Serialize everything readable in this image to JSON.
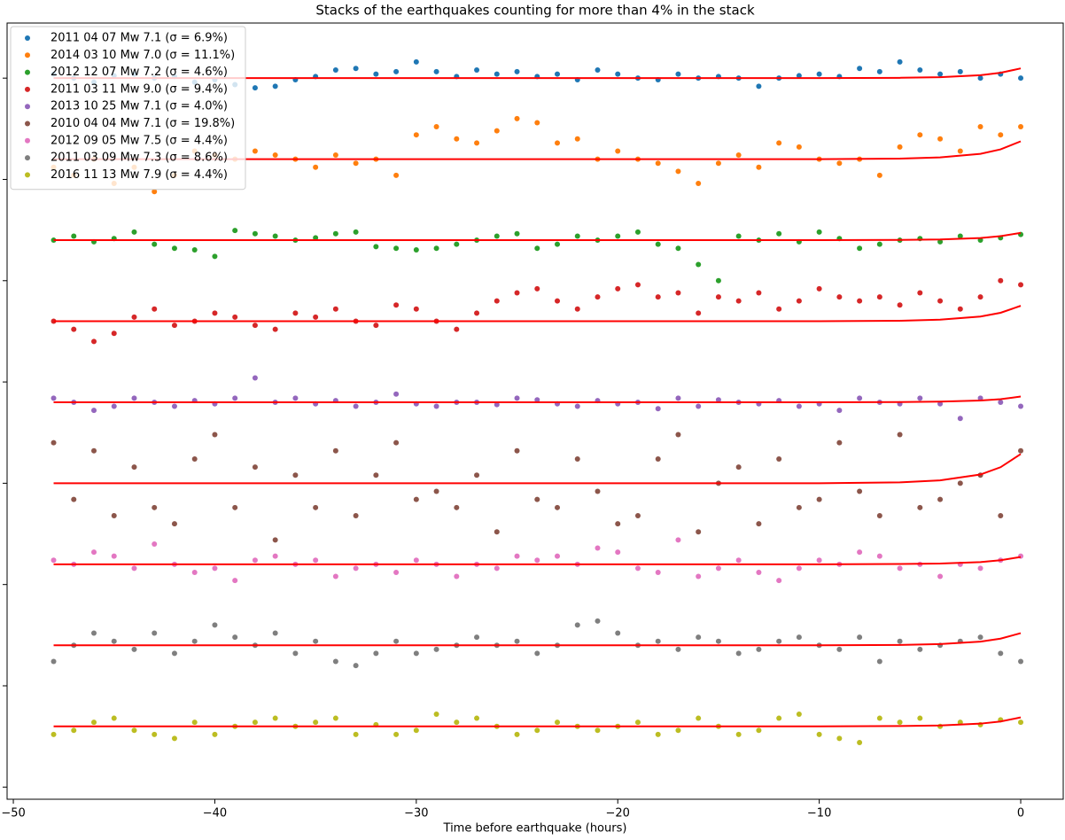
{
  "chart_data": {
    "type": "scatter",
    "title": "Stacks of the earthquakes counting for more than 4% in the stack",
    "x_label": "Time before earthquake (hours)",
    "xlim": [
      -50.31,
      2.11
    ],
    "ylim": [
      -8.9,
      0.68
    ],
    "xticks": [
      {
        "value": -50,
        "label": "−50"
      },
      {
        "value": -40,
        "label": "−40"
      },
      {
        "value": -30,
        "label": "−30"
      },
      {
        "value": -20,
        "label": "−20"
      },
      {
        "value": -10,
        "label": "−10"
      },
      0
    ],
    "yticks": [
      0,
      -1.25,
      -2.5,
      -3.75,
      -5,
      -6.25,
      -7.5,
      -8.75
    ],
    "legend": "upper left",
    "x": [
      -48,
      -47,
      -46,
      -45,
      -44,
      -43,
      -42,
      -41,
      -40,
      -39,
      -38,
      -37,
      -36,
      -35,
      -34,
      -33,
      -32,
      -31,
      -30,
      -29,
      -28,
      -27,
      -26,
      -25,
      -24,
      -23,
      -22,
      -21,
      -20,
      -19,
      -18,
      -17,
      -16,
      -15,
      -14,
      -13,
      -12,
      -11,
      -10,
      -9,
      -8,
      -7,
      -6,
      -5,
      -4,
      -3,
      -2,
      -1,
      0
    ],
    "series": [
      {
        "name": "2011 04 07 Mw 7.1 (σ = 6.9%)",
        "color": "#1f77b4",
        "values": [
          0.05,
          0.0,
          -0.05,
          0.03,
          0.05,
          0.0,
          0.02,
          -0.05,
          -0.02,
          -0.08,
          -0.12,
          -0.1,
          -0.02,
          0.02,
          0.1,
          0.12,
          0.05,
          0.08,
          0.2,
          0.08,
          0.02,
          0.1,
          0.05,
          0.08,
          0.02,
          0.05,
          -0.02,
          0.1,
          0.05,
          0.0,
          -0.02,
          0.05,
          0.0,
          0.02,
          0.0,
          -0.1,
          0.0,
          0.03,
          0.05,
          0.02,
          0.12,
          0.08,
          0.2,
          0.1,
          0.05,
          0.08,
          0.0,
          0.05,
          0.0
        ]
      },
      {
        "name": "2014 03 10 Mw 7.0 (σ = 11.1%)",
        "color": "#ff7f0e",
        "values": [
          -1.1,
          -1.2,
          -1.0,
          -1.3,
          -1.1,
          -1.4,
          -1.2,
          -0.9,
          -0.95,
          -1.0,
          -0.9,
          -0.95,
          -1.0,
          -1.1,
          -0.95,
          -1.05,
          -1.0,
          -1.2,
          -0.7,
          -0.6,
          -0.75,
          -0.8,
          -0.65,
          -0.5,
          -0.55,
          -0.8,
          -0.75,
          -1.0,
          -0.9,
          -1.0,
          -1.05,
          -1.15,
          -1.3,
          -1.05,
          -0.95,
          -1.1,
          -0.8,
          -0.85,
          -1.0,
          -1.05,
          -1.0,
          -1.2,
          -0.85,
          -0.7,
          -0.75,
          -0.9,
          -0.6,
          -0.7,
          -0.6
        ]
      },
      {
        "name": "2012 12 07 Mw 7.2 (σ = 4.6%)",
        "color": "#2ca02c",
        "values": [
          -2.0,
          -1.95,
          -2.02,
          -1.98,
          -1.9,
          -2.05,
          -2.1,
          -2.12,
          -2.2,
          -1.88,
          -1.92,
          -1.95,
          -2.0,
          -1.97,
          -1.92,
          -1.9,
          -2.08,
          -2.1,
          -2.12,
          -2.1,
          -2.05,
          -2.0,
          -1.95,
          -1.92,
          -2.1,
          -2.05,
          -1.95,
          -2.0,
          -1.95,
          -1.9,
          -2.05,
          -2.1,
          -2.3,
          -2.5,
          -1.95,
          -2.0,
          -1.92,
          -2.02,
          -1.9,
          -1.98,
          -2.1,
          -2.05,
          -2.0,
          -1.98,
          -2.02,
          -1.95,
          -2.0,
          -1.97,
          -1.93
        ]
      },
      {
        "name": "2011 03 11 Mw 9.0 (σ = 9.4%)",
        "color": "#d62728",
        "values": [
          -3.0,
          -3.1,
          -3.25,
          -3.15,
          -2.95,
          -2.85,
          -3.05,
          -3.0,
          -2.9,
          -2.95,
          -3.05,
          -3.1,
          -2.9,
          -2.95,
          -2.85,
          -3.0,
          -3.05,
          -2.8,
          -2.85,
          -3.0,
          -3.1,
          -2.9,
          -2.75,
          -2.65,
          -2.6,
          -2.75,
          -2.85,
          -2.7,
          -2.6,
          -2.55,
          -2.7,
          -2.65,
          -2.9,
          -2.7,
          -2.75,
          -2.65,
          -2.85,
          -2.75,
          -2.6,
          -2.7,
          -2.75,
          -2.7,
          -2.8,
          -2.65,
          -2.75,
          -2.85,
          -2.7,
          -2.5,
          -2.55
        ]
      },
      {
        "name": "2013 10 25 Mw 7.1 (σ = 4.0%)",
        "color": "#9467bd",
        "values": [
          -3.95,
          -4.0,
          -4.1,
          -4.05,
          -3.95,
          -4.0,
          -4.05,
          -3.98,
          -4.02,
          -3.95,
          -3.7,
          -4.0,
          -3.95,
          -4.02,
          -3.98,
          -4.05,
          -4.0,
          -3.9,
          -4.02,
          -4.05,
          -4.0,
          -4.0,
          -4.03,
          -3.95,
          -3.97,
          -4.02,
          -4.05,
          -3.98,
          -4.02,
          -4.0,
          -4.08,
          -3.95,
          -4.05,
          -3.97,
          -4.0,
          -4.02,
          -3.98,
          -4.05,
          -4.02,
          -4.1,
          -3.95,
          -4.0,
          -4.02,
          -3.95,
          -4.02,
          -4.2,
          -3.95,
          -4.0,
          -4.05
        ]
      },
      {
        "name": "2010 04 04 Mw 7.1 (σ = 19.8%)",
        "color": "#8c564b",
        "values": [
          -4.5,
          -5.2,
          -4.6,
          -5.4,
          -4.8,
          -5.3,
          -5.5,
          -4.7,
          -4.4,
          -5.3,
          -4.8,
          -5.7,
          -4.9,
          -5.3,
          -4.6,
          -5.4,
          -4.9,
          -4.5,
          -5.2,
          -5.1,
          -5.3,
          -4.9,
          -5.6,
          -4.6,
          -5.2,
          -5.3,
          -4.7,
          -5.1,
          -5.5,
          -5.4,
          -4.7,
          -4.4,
          -5.6,
          -5.0,
          -4.8,
          -5.5,
          -4.7,
          -5.3,
          -5.2,
          -4.5,
          -5.1,
          -5.4,
          -4.4,
          -5.3,
          -5.2,
          -5.0,
          -4.9,
          -5.4,
          -4.6
        ]
      },
      {
        "name": "2012 09 05 Mw 7.5 (σ = 4.4%)",
        "color": "#e377c2",
        "values": [
          -5.95,
          -6.0,
          -5.85,
          -5.9,
          -6.05,
          -5.75,
          -6.0,
          -6.1,
          -6.05,
          -6.2,
          -5.95,
          -5.9,
          -6.0,
          -5.95,
          -6.15,
          -6.05,
          -6.0,
          -6.1,
          -5.95,
          -6.0,
          -6.15,
          -6.0,
          -6.05,
          -5.9,
          -5.95,
          -5.9,
          -6.0,
          -5.8,
          -5.85,
          -6.05,
          -6.1,
          -5.7,
          -6.15,
          -6.05,
          -5.95,
          -6.1,
          -6.2,
          -6.05,
          -5.95,
          -6.0,
          -5.85,
          -5.9,
          -6.05,
          -6.0,
          -6.15,
          -6.0,
          -6.05,
          -5.95,
          -5.9
        ]
      },
      {
        "name": "2011 03 09 Mw 7.3 (σ = 8.6%)",
        "color": "#7f7f7f",
        "values": [
          -7.2,
          -7.0,
          -6.85,
          -6.95,
          -7.05,
          -6.85,
          -7.1,
          -6.95,
          -6.75,
          -6.9,
          -7.0,
          -6.85,
          -7.1,
          -6.95,
          -7.2,
          -7.25,
          -7.1,
          -6.95,
          -7.1,
          -7.05,
          -7.0,
          -6.9,
          -7.0,
          -6.95,
          -7.1,
          -7.0,
          -6.75,
          -6.7,
          -6.85,
          -7.0,
          -6.95,
          -7.05,
          -6.9,
          -6.95,
          -7.1,
          -7.05,
          -6.95,
          -6.9,
          -7.0,
          -7.05,
          -6.9,
          -7.2,
          -6.95,
          -7.05,
          -7.0,
          -6.95,
          -6.9,
          -7.1,
          -7.2
        ]
      },
      {
        "name": "2016 11 13 Mw 7.9 (σ = 4.4%)",
        "color": "#bcbd22",
        "values": [
          -8.1,
          -8.05,
          -7.95,
          -7.9,
          -8.05,
          -8.1,
          -8.15,
          -7.95,
          -8.1,
          -8.0,
          -7.95,
          -7.9,
          -8.0,
          -7.95,
          -7.9,
          -8.1,
          -7.98,
          -8.1,
          -8.05,
          -7.85,
          -7.95,
          -7.9,
          -8.0,
          -8.1,
          -8.05,
          -7.95,
          -8.0,
          -8.05,
          -8.0,
          -7.95,
          -8.1,
          -8.05,
          -7.9,
          -8.0,
          -8.1,
          -8.05,
          -7.9,
          -7.85,
          -8.1,
          -8.15,
          -8.2,
          -7.9,
          -7.95,
          -7.9,
          -8.0,
          -7.95,
          -7.98,
          -7.92,
          -7.95
        ]
      }
    ],
    "fit_x": [
      -48,
      -10,
      -6,
      -4,
      -2,
      -1,
      0
    ],
    "fits": [
      {
        "color": "#ff0000",
        "values": [
          0,
          0,
          0.004,
          0.012,
          0.036,
          0.066,
          0.12
        ]
      },
      {
        "color": "#ff0000",
        "values": [
          -1,
          -1,
          -0.993,
          -0.978,
          -0.934,
          -0.879,
          -0.78
        ]
      },
      {
        "color": "#ff0000",
        "values": [
          -2,
          -2,
          -1.997,
          -1.991,
          -1.973,
          -1.95,
          -1.91
        ]
      },
      {
        "color": "#ff0000",
        "values": [
          -3,
          -3,
          -2.994,
          -2.981,
          -2.943,
          -2.896,
          -2.81
        ]
      },
      {
        "color": "#ff0000",
        "values": [
          -4,
          -4,
          -3.998,
          -3.993,
          -3.979,
          -3.962,
          -3.93
        ]
      },
      {
        "color": "#ff0000",
        "values": [
          -5,
          -5,
          -4.989,
          -4.964,
          -4.892,
          -4.802,
          -4.64
        ]
      },
      {
        "color": "#ff0000",
        "values": [
          -6,
          -6,
          -5.997,
          -5.991,
          -5.973,
          -5.95,
          -5.91
        ]
      },
      {
        "color": "#ff0000",
        "values": [
          -7,
          -7,
          -6.996,
          -6.985,
          -6.955,
          -6.918,
          -6.85
        ]
      },
      {
        "color": "#ff0000",
        "values": [
          -8,
          -8,
          -7.997,
          -7.989,
          -7.967,
          -7.94,
          -7.89
        ]
      }
    ]
  }
}
